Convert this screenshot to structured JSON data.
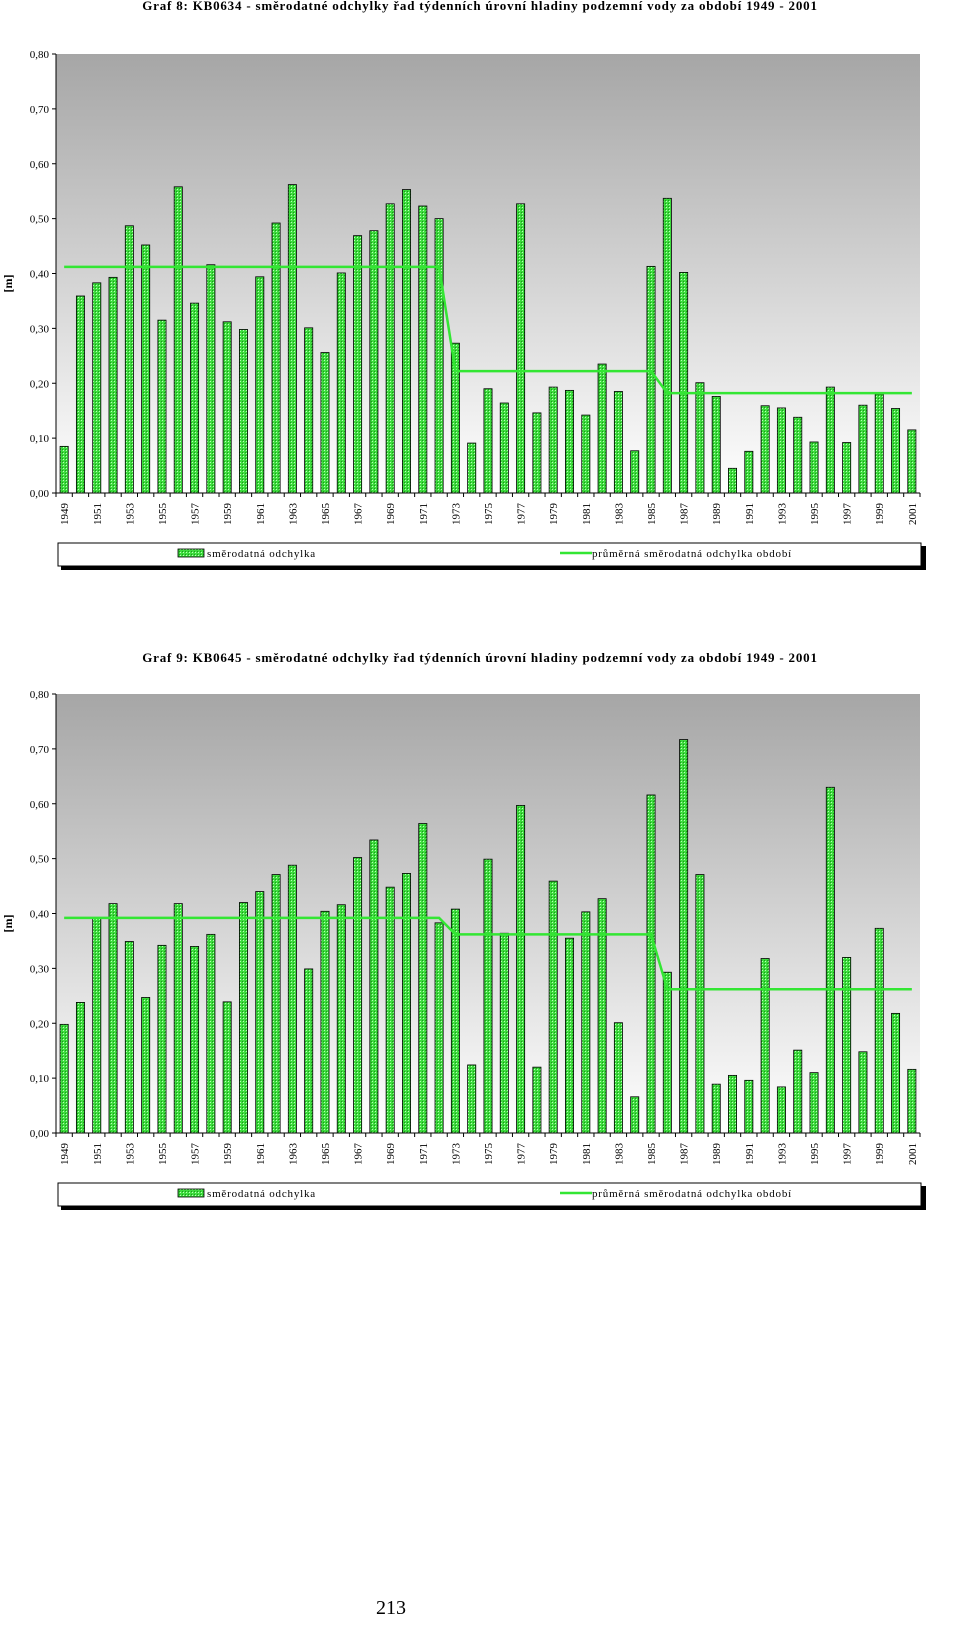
{
  "page": {
    "page_number": "213"
  },
  "chart_data": [
    {
      "type": "bar",
      "title": "Graf 8: KB0634 - směrodatné odchylky řad týdenních úrovní hladiny podzemní vody za období 1949 - 2001",
      "ylabel": "[m]",
      "xlabel": "",
      "ylim": [
        0,
        0.8
      ],
      "yticks": [
        "0,00",
        "0,10",
        "0,20",
        "0,30",
        "0,40",
        "0,50",
        "0,60",
        "0,70",
        "0,80"
      ],
      "grid": false,
      "legend_position": "bottom",
      "categories": [
        "1949",
        "1950",
        "1951",
        "1952",
        "1953",
        "1954",
        "1955",
        "1956",
        "1957",
        "1958",
        "1959",
        "1960",
        "1961",
        "1962",
        "1963",
        "1964",
        "1965",
        "1966",
        "1967",
        "1968",
        "1969",
        "1970",
        "1971",
        "1972",
        "1973",
        "1974",
        "1975",
        "1976",
        "1977",
        "1978",
        "1979",
        "1980",
        "1981",
        "1982",
        "1983",
        "1984",
        "1985",
        "1986",
        "1987",
        "1988",
        "1989",
        "1990",
        "1991",
        "1992",
        "1993",
        "1994",
        "1995",
        "1996",
        "1997",
        "1998",
        "1999",
        "2000",
        "2001"
      ],
      "xtick_labels": [
        "1949",
        "1951",
        "1953",
        "1955",
        "1957",
        "1959",
        "1961",
        "1963",
        "1965",
        "1967",
        "1969",
        "1971",
        "1973",
        "1975",
        "1977",
        "1979",
        "1981",
        "1983",
        "1985",
        "1987",
        "1989",
        "1991",
        "1993",
        "1995",
        "1997",
        "1999",
        "2001"
      ],
      "series": [
        {
          "name": "směrodatná odchylka",
          "kind": "bar",
          "color": "#3ddc3d",
          "values": [
            0.085,
            0.359,
            0.383,
            0.393,
            0.487,
            0.452,
            0.315,
            0.558,
            0.346,
            0.416,
            0.312,
            0.298,
            0.394,
            0.492,
            0.562,
            0.301,
            0.256,
            0.401,
            0.469,
            0.478,
            0.527,
            0.553,
            0.523,
            0.5,
            0.273,
            0.091,
            0.19,
            0.164,
            0.527,
            0.146,
            0.193,
            0.187,
            0.142,
            0.235,
            0.185,
            0.077,
            0.413,
            0.537,
            0.402,
            0.201,
            0.176,
            0.045,
            0.076,
            0.159,
            0.155,
            0.138,
            0.093,
            0.193,
            0.092,
            0.16,
            0.18,
            0.154,
            0.115
          ]
        },
        {
          "name": "průměrná směrodatná odchylka období",
          "kind": "line",
          "color": "#33e633",
          "values": [
            0.412,
            0.412,
            0.412,
            0.412,
            0.412,
            0.412,
            0.412,
            0.412,
            0.412,
            0.412,
            0.412,
            0.412,
            0.412,
            0.412,
            0.412,
            0.412,
            0.412,
            0.412,
            0.412,
            0.412,
            0.412,
            0.412,
            0.412,
            0.412,
            0.222,
            0.222,
            0.222,
            0.222,
            0.222,
            0.222,
            0.222,
            0.222,
            0.222,
            0.222,
            0.222,
            0.222,
            0.222,
            0.182,
            0.182,
            0.182,
            0.182,
            0.182,
            0.182,
            0.182,
            0.182,
            0.182,
            0.182,
            0.182,
            0.182,
            0.182,
            0.182,
            0.182,
            0.182
          ]
        }
      ]
    },
    {
      "type": "bar",
      "title": "Graf 9: KB0645 - směrodatné odchylky řad týdenních úrovní hladiny podzemní vody za období 1949 - 2001",
      "ylabel": "[m]",
      "xlabel": "",
      "ylim": [
        0,
        0.8
      ],
      "yticks": [
        "0,00",
        "0,10",
        "0,20",
        "0,30",
        "0,40",
        "0,50",
        "0,60",
        "0,70",
        "0,80"
      ],
      "grid": false,
      "legend_position": "bottom",
      "categories": [
        "1949",
        "1950",
        "1951",
        "1952",
        "1953",
        "1954",
        "1955",
        "1956",
        "1957",
        "1958",
        "1959",
        "1960",
        "1961",
        "1962",
        "1963",
        "1964",
        "1965",
        "1966",
        "1967",
        "1968",
        "1969",
        "1970",
        "1971",
        "1972",
        "1973",
        "1974",
        "1975",
        "1976",
        "1977",
        "1978",
        "1979",
        "1980",
        "1981",
        "1982",
        "1983",
        "1984",
        "1985",
        "1986",
        "1987",
        "1988",
        "1989",
        "1990",
        "1991",
        "1992",
        "1993",
        "1994",
        "1995",
        "1996",
        "1997",
        "1998",
        "1999",
        "2000",
        "2001"
      ],
      "xtick_labels": [
        "1949",
        "1951",
        "1953",
        "1955",
        "1957",
        "1959",
        "1961",
        "1963",
        "1965",
        "1967",
        "1969",
        "1971",
        "1973",
        "1975",
        "1977",
        "1979",
        "1981",
        "1983",
        "1985",
        "1987",
        "1989",
        "1991",
        "1993",
        "1995",
        "1997",
        "1999",
        "2001"
      ],
      "series": [
        {
          "name": "směrodatná odchylka",
          "kind": "bar",
          "color": "#3ddc3d",
          "values": [
            0.198,
            0.238,
            0.392,
            0.418,
            0.349,
            0.247,
            0.342,
            0.418,
            0.34,
            0.362,
            0.239,
            0.42,
            0.44,
            0.471,
            0.488,
            0.299,
            0.404,
            0.416,
            0.502,
            0.534,
            0.448,
            0.473,
            0.564,
            0.383,
            0.408,
            0.124,
            0.499,
            0.364,
            0.597,
            0.12,
            0.459,
            0.355,
            0.403,
            0.427,
            0.201,
            0.066,
            0.616,
            0.293,
            0.717,
            0.471,
            0.089,
            0.105,
            0.096,
            0.318,
            0.084,
            0.151,
            0.11,
            0.63,
            0.32,
            0.148,
            0.373,
            0.218,
            0.116
          ]
        },
        {
          "name": "průměrná směrodatná odchylka období",
          "kind": "line",
          "color": "#33e633",
          "values": [
            0.392,
            0.392,
            0.392,
            0.392,
            0.392,
            0.392,
            0.392,
            0.392,
            0.392,
            0.392,
            0.392,
            0.392,
            0.392,
            0.392,
            0.392,
            0.392,
            0.392,
            0.392,
            0.392,
            0.392,
            0.392,
            0.392,
            0.392,
            0.392,
            0.362,
            0.362,
            0.362,
            0.362,
            0.362,
            0.362,
            0.362,
            0.362,
            0.362,
            0.362,
            0.362,
            0.362,
            0.362,
            0.262,
            0.262,
            0.262,
            0.262,
            0.262,
            0.262,
            0.262,
            0.262,
            0.262,
            0.262,
            0.262,
            0.262,
            0.262,
            0.262,
            0.262,
            0.262
          ]
        }
      ]
    }
  ]
}
